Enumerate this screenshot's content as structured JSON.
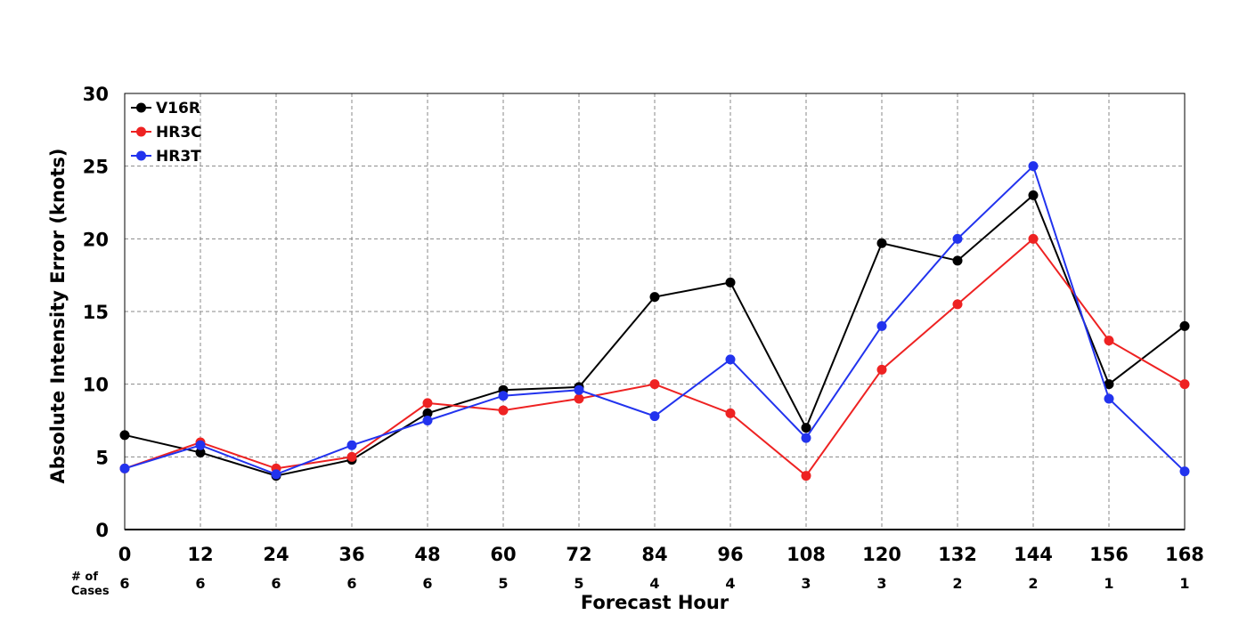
{
  "chart_data": {
    "type": "line",
    "title": "",
    "xlabel": "Forecast Hour",
    "ylabel": "Absolute Intensity Error (knots)",
    "x": [
      0,
      12,
      24,
      36,
      48,
      60,
      72,
      84,
      96,
      108,
      120,
      132,
      144,
      156,
      168
    ],
    "xlim": [
      0,
      168
    ],
    "ylim": [
      0,
      30
    ],
    "yticks": [
      0,
      5,
      10,
      15,
      20,
      25,
      30
    ],
    "grid": true,
    "legend_position": "top-left",
    "series": [
      {
        "name": "V16R",
        "color": "#000000",
        "values": [
          6.5,
          5.3,
          3.7,
          4.8,
          8.0,
          9.6,
          9.8,
          16.0,
          17.0,
          7.0,
          19.7,
          18.5,
          23.0,
          10.0,
          14.0
        ]
      },
      {
        "name": "HR3C",
        "color": "#ee2222",
        "values": [
          4.2,
          6.0,
          4.2,
          5.0,
          8.7,
          8.2,
          9.0,
          10.0,
          8.0,
          3.7,
          11.0,
          15.5,
          20.0,
          13.0,
          10.0
        ]
      },
      {
        "name": "HR3T",
        "color": "#2233ee",
        "values": [
          4.2,
          5.8,
          3.8,
          5.8,
          7.5,
          9.2,
          9.6,
          7.8,
          11.7,
          6.3,
          14.0,
          20.0,
          25.0,
          9.0,
          4.0
        ]
      }
    ],
    "cases_label_line1": "# of",
    "cases_label_line2": "Cases",
    "cases": [
      "6",
      "6",
      "6",
      "6",
      "6",
      "5",
      "5",
      "4",
      "4",
      "3",
      "3",
      "2",
      "2",
      "1",
      "1"
    ]
  }
}
